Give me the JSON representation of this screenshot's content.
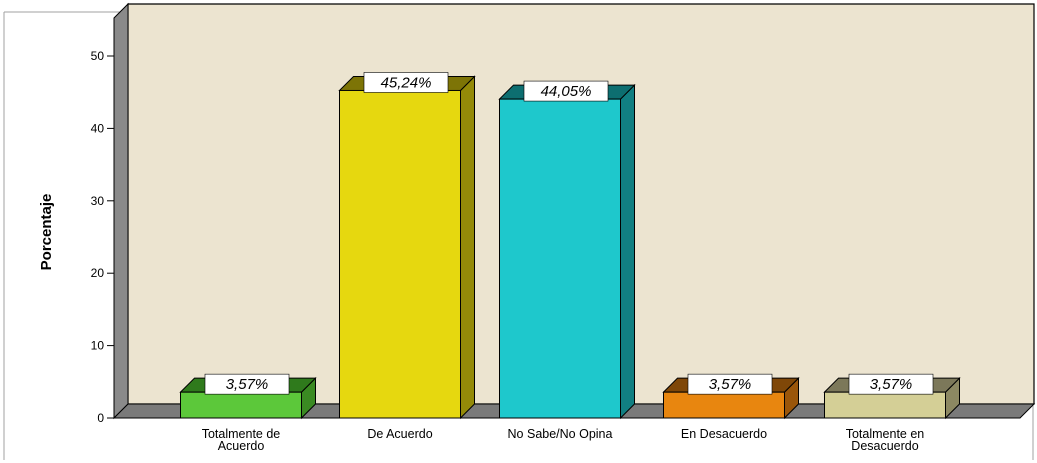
{
  "chart_data": {
    "type": "bar",
    "title": "",
    "xlabel": "",
    "ylabel": "Porcentaje",
    "ylim": [
      0,
      50
    ],
    "yticks": [
      0,
      10,
      20,
      30,
      40,
      50
    ],
    "grid": false,
    "categories": [
      [
        "Totalmente de",
        "Acuerdo"
      ],
      [
        "De Acuerdo"
      ],
      [
        "No Sabe/No Opina"
      ],
      [
        "En Desacuerdo"
      ],
      [
        "Totalmente en",
        "Desacuerdo"
      ]
    ],
    "values": [
      3.57,
      45.24,
      44.05,
      3.57,
      3.57
    ],
    "labels": [
      "3,57%",
      "45,24%",
      "44,05%",
      "3,57%",
      "3,57%"
    ],
    "colors": [
      "#5cc83a",
      "#e6d80f",
      "#1ec8cc",
      "#e8860f",
      "#d4cf96"
    ],
    "side_colors": [
      "#3a8a22",
      "#948a08",
      "#117f82",
      "#9a560a",
      "#8c8862"
    ],
    "top_colors": [
      "#2f7a1c",
      "#7d7406",
      "#0d6e70",
      "#7f4708",
      "#7c785a"
    ],
    "background": "#ece4d0"
  }
}
